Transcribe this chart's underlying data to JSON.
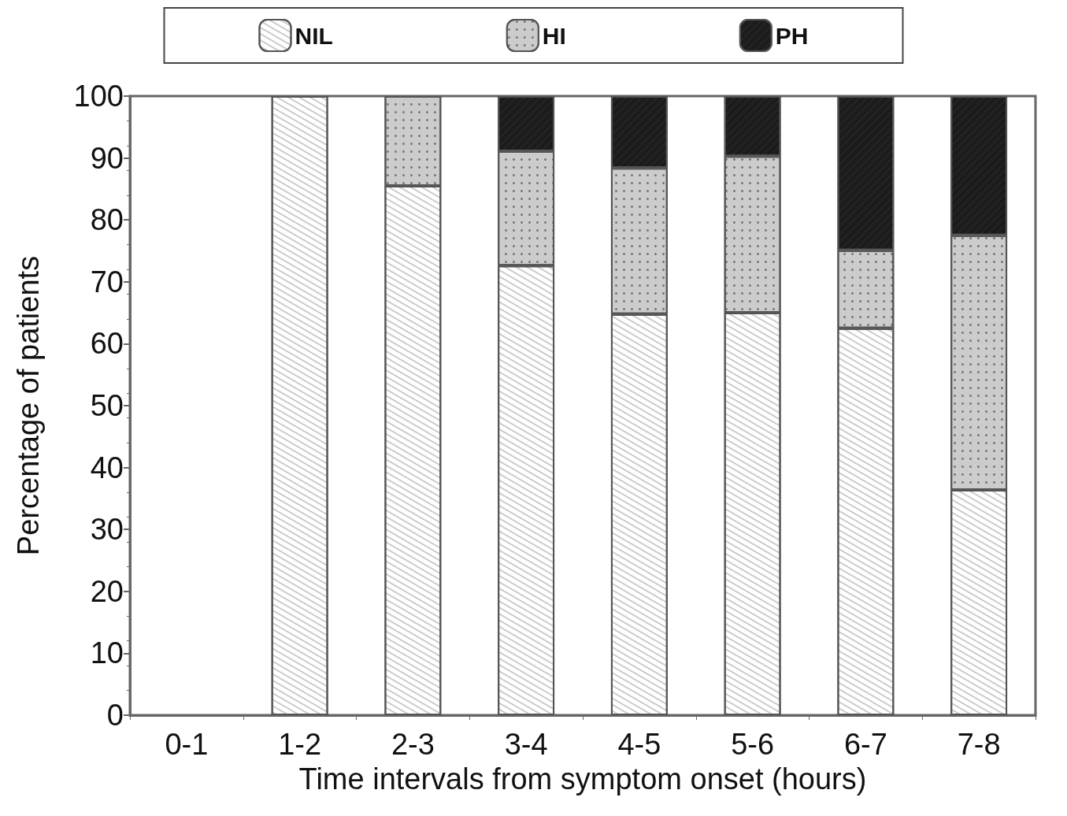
{
  "chart_data": {
    "type": "bar",
    "stacked": true,
    "xlabel": "Time intervals from symptom onset (hours)",
    "ylabel": "Percentage of patients",
    "categories": [
      "0-1",
      "1-2",
      "2-3",
      "3-4",
      "4-5",
      "5-6",
      "6-7",
      "7-8"
    ],
    "series": [
      {
        "name": "NIL",
        "color": "#ffffff",
        "values": [
          null,
          100,
          85.5,
          72.6,
          64.8,
          65.0,
          62.5,
          36.4
        ]
      },
      {
        "name": "HI",
        "color": "#cccccc",
        "values": [
          null,
          null,
          14.5,
          18.5,
          23.6,
          25.3,
          12.6,
          41.1
        ]
      },
      {
        "name": "PH",
        "color": "#222222",
        "values": [
          null,
          null,
          null,
          8.9,
          11.6,
          9.7,
          24.9,
          22.5
        ]
      }
    ],
    "ylim": [
      0,
      100
    ],
    "yticks": [
      0,
      10,
      20,
      30,
      40,
      50,
      60,
      70,
      80,
      90,
      100
    ],
    "grid": false,
    "legend": "top"
  }
}
